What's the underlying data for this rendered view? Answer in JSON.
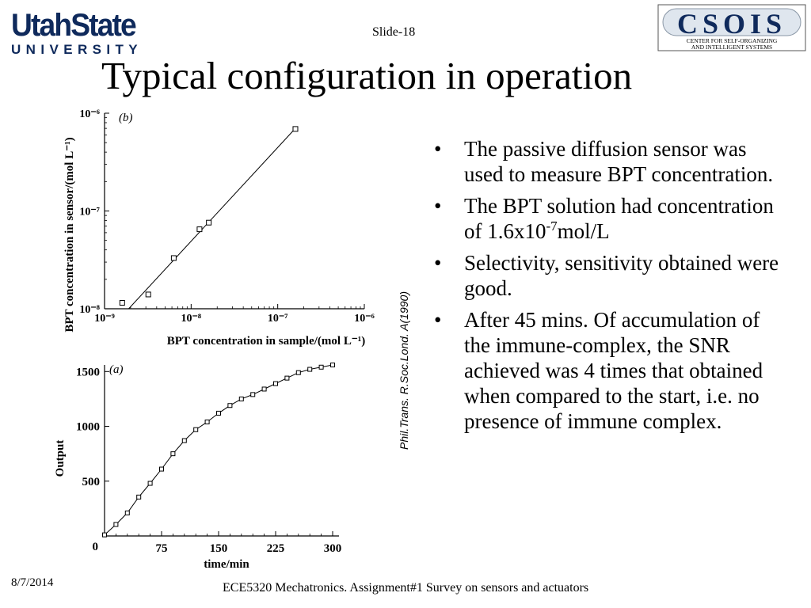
{
  "header": {
    "logo_left": {
      "line1": "UtahState",
      "line2": "UNIVERSITY"
    },
    "slide_number": "Slide-18",
    "logo_right": {
      "name": "CSOIS",
      "line1": "CENTER FOR SELF-ORGANIZING",
      "line2": "AND INTELLIGENT SYSTEMS"
    }
  },
  "title": "Typical configuration in operation",
  "bullets": [
    {
      "text": "The passive diffusion sensor was used to measure BPT concentration."
    },
    {
      "text_before": "The BPT solution had concentration of 1.6x10",
      "superscript": "-7",
      "text_after": "mol/L"
    },
    {
      "text": "Selectivity, sensitivity obtained were good."
    },
    {
      "text": "After 45 mins. Of accumulation of the immune-complex, the SNR achieved was 4 times that obtained when compared to the start, i.e. no presence of immune complex."
    }
  ],
  "citation": "Phil.Trans. R.Soc.Lond. A(1990)",
  "footer": {
    "date": "8/7/2014",
    "course": "ECE5320 Mechatronics. Assignment#1 Survey on sensors and actuators"
  },
  "chart_data": [
    {
      "type": "scatter",
      "panel_label": "(b)",
      "xlabel": "BPT concentration in sample/(mol L⁻¹)",
      "ylabel": "BPT concentration in sensor/(mol L⁻¹)",
      "x_scale": "log",
      "y_scale": "log",
      "xlim": [
        1e-09,
        1e-06
      ],
      "ylim": [
        1e-08,
        1e-06
      ],
      "x_ticks": [
        "10⁻⁹",
        "10⁻⁸",
        "10⁻⁷",
        "10⁻⁶"
      ],
      "y_ticks": [
        "10⁻⁸",
        "10⁻⁷",
        "10⁻⁶"
      ],
      "points": [
        {
          "x": 1.6e-09,
          "y": 1.15e-08
        },
        {
          "x": 3.2e-09,
          "y": 1.4e-08
        },
        {
          "x": 6.3e-09,
          "y": 3.3e-08
        },
        {
          "x": 1.25e-08,
          "y": 6.5e-08
        },
        {
          "x": 1.6e-08,
          "y": 7.6e-08
        },
        {
          "x": 1.6e-07,
          "y": 6.9e-07
        }
      ],
      "fit_line": [
        {
          "x": 1.9e-09,
          "y": 1e-08
        },
        {
          "x": 1.6e-07,
          "y": 7e-07
        }
      ]
    },
    {
      "type": "scatter",
      "panel_label": "(a)",
      "xlabel": "time/min",
      "ylabel": "Output",
      "xlim": [
        0,
        300
      ],
      "ylim": [
        0,
        1560
      ],
      "x_ticks": [
        0,
        75,
        150,
        225,
        300
      ],
      "y_ticks": [
        0,
        500,
        1000,
        1500
      ],
      "points": [
        {
          "x": 0,
          "y": 10
        },
        {
          "x": 15,
          "y": 105
        },
        {
          "x": 30,
          "y": 210
        },
        {
          "x": 45,
          "y": 355
        },
        {
          "x": 60,
          "y": 480
        },
        {
          "x": 75,
          "y": 610
        },
        {
          "x": 90,
          "y": 750
        },
        {
          "x": 105,
          "y": 870
        },
        {
          "x": 120,
          "y": 970
        },
        {
          "x": 135,
          "y": 1040
        },
        {
          "x": 150,
          "y": 1120
        },
        {
          "x": 165,
          "y": 1190
        },
        {
          "x": 180,
          "y": 1250
        },
        {
          "x": 195,
          "y": 1290
        },
        {
          "x": 210,
          "y": 1340
        },
        {
          "x": 225,
          "y": 1390
        },
        {
          "x": 240,
          "y": 1440
        },
        {
          "x": 255,
          "y": 1490
        },
        {
          "x": 270,
          "y": 1520
        },
        {
          "x": 285,
          "y": 1540
        },
        {
          "x": 300,
          "y": 1560
        }
      ]
    }
  ]
}
